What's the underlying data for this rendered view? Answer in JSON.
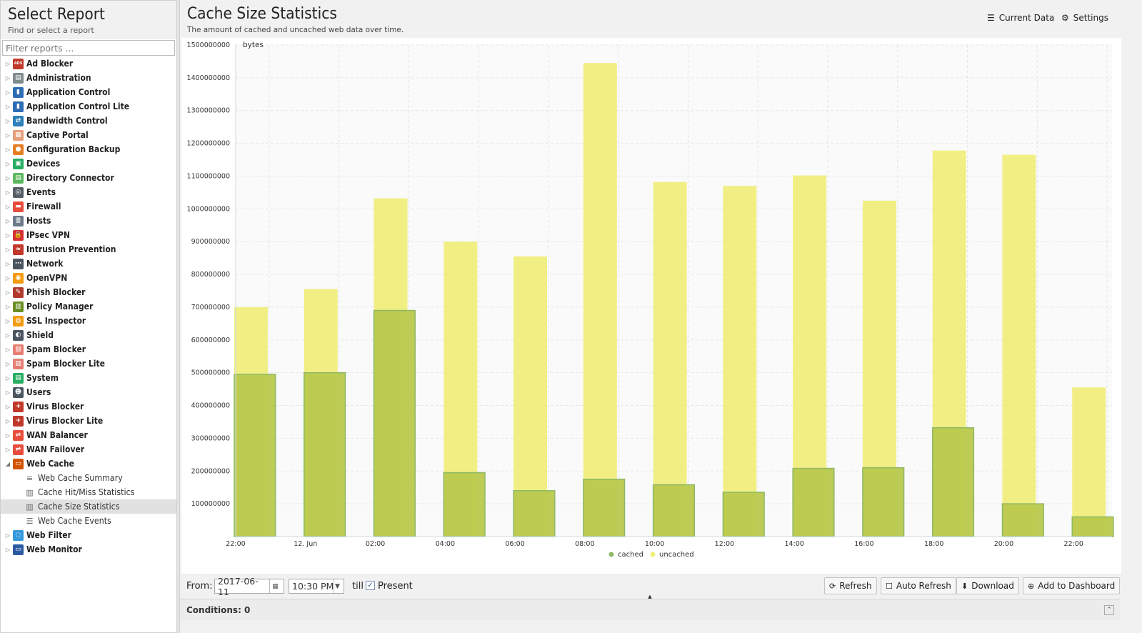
{
  "sidebar": {
    "title": "Select Report",
    "subtitle": "Find or select a report",
    "filter_placeholder": "Filter reports ...",
    "items": [
      {
        "label": "Ad Blocker",
        "icon": "ad-blocker-icon",
        "color": "#c0392b",
        "glyph": "ADS"
      },
      {
        "label": "Administration",
        "icon": "administration-icon",
        "color": "#7f8c8d",
        "glyph": "▤"
      },
      {
        "label": "Application Control",
        "icon": "application-control-icon",
        "color": "#2e6db4",
        "glyph": "▮"
      },
      {
        "label": "Application Control Lite",
        "icon": "application-control-lite-icon",
        "color": "#2e6db4",
        "glyph": "▮"
      },
      {
        "label": "Bandwidth Control",
        "icon": "bandwidth-control-icon",
        "color": "#2c7fb8",
        "glyph": "⇄"
      },
      {
        "label": "Captive Portal",
        "icon": "captive-portal-icon",
        "color": "#e6a07c",
        "glyph": "▦"
      },
      {
        "label": "Configuration Backup",
        "icon": "configuration-backup-icon",
        "color": "#e67e22",
        "glyph": "●"
      },
      {
        "label": "Devices",
        "icon": "devices-icon",
        "color": "#27ae60",
        "glyph": "▣"
      },
      {
        "label": "Directory Connector",
        "icon": "directory-connector-icon",
        "color": "#5cb85c",
        "glyph": "▤"
      },
      {
        "label": "Events",
        "icon": "events-icon",
        "color": "#555e66",
        "glyph": "◎"
      },
      {
        "label": "Firewall",
        "icon": "firewall-icon",
        "color": "#e74c3c",
        "glyph": "▬"
      },
      {
        "label": "Hosts",
        "icon": "hosts-icon",
        "color": "#6c7a89",
        "glyph": "≣"
      },
      {
        "label": "IPsec VPN",
        "icon": "ipsec-vpn-icon",
        "color": "#d63031",
        "glyph": "🔒"
      },
      {
        "label": "Intrusion Prevention",
        "icon": "intrusion-prevention-icon",
        "color": "#c0392b",
        "glyph": "≈"
      },
      {
        "label": "Network",
        "icon": "network-icon",
        "color": "#4a5560",
        "glyph": "⋯"
      },
      {
        "label": "OpenVPN",
        "icon": "openvpn-icon",
        "color": "#f39c12",
        "glyph": "◉"
      },
      {
        "label": "Phish Blocker",
        "icon": "phish-blocker-icon",
        "color": "#b03a2e",
        "glyph": "✎"
      },
      {
        "label": "Policy Manager",
        "icon": "policy-manager-icon",
        "color": "#6b8e23",
        "glyph": "▥"
      },
      {
        "label": "SSL Inspector",
        "icon": "ssl-inspector-icon",
        "color": "#f39c12",
        "glyph": "◍"
      },
      {
        "label": "Shield",
        "icon": "shield-icon",
        "color": "#4a5560",
        "glyph": "◐"
      },
      {
        "label": "Spam Blocker",
        "icon": "spam-blocker-icon",
        "color": "#e67e73",
        "glyph": "▨"
      },
      {
        "label": "Spam Blocker Lite",
        "icon": "spam-blocker-lite-icon",
        "color": "#e67e73",
        "glyph": "▨"
      },
      {
        "label": "System",
        "icon": "system-icon",
        "color": "#27ae60",
        "glyph": "▤"
      },
      {
        "label": "Users",
        "icon": "users-icon",
        "color": "#4a5560",
        "glyph": "☻"
      },
      {
        "label": "Virus Blocker",
        "icon": "virus-blocker-icon",
        "color": "#c0392b",
        "glyph": "+"
      },
      {
        "label": "Virus Blocker Lite",
        "icon": "virus-blocker-lite-icon",
        "color": "#c0392b",
        "glyph": "+"
      },
      {
        "label": "WAN Balancer",
        "icon": "wan-balancer-icon",
        "color": "#e74c3c",
        "glyph": "⇌"
      },
      {
        "label": "WAN Failover",
        "icon": "wan-failover-icon",
        "color": "#e74c3c",
        "glyph": "⇌"
      },
      {
        "label": "Web Cache",
        "icon": "web-cache-icon",
        "color": "#d35400",
        "glyph": "▭",
        "expanded": true
      },
      {
        "label": "Web Filter",
        "icon": "web-filter-icon",
        "color": "#3498db",
        "glyph": "◌"
      },
      {
        "label": "Web Monitor",
        "icon": "web-monitor-icon",
        "color": "#2c5aa0",
        "glyph": "▭"
      }
    ],
    "web_cache_children": [
      {
        "label": "Web Cache Summary",
        "icon": "text-report-icon",
        "glyph": "≡",
        "selected": false
      },
      {
        "label": "Cache Hit/Miss Statistics",
        "icon": "bar-chart-icon",
        "glyph": "▥",
        "selected": false
      },
      {
        "label": "Cache Size Statistics",
        "icon": "bar-chart-icon",
        "glyph": "▥",
        "selected": true
      },
      {
        "label": "Web Cache Events",
        "icon": "list-icon",
        "glyph": "☰",
        "selected": false
      }
    ]
  },
  "main": {
    "title": "Cache Size Statistics",
    "subtitle": "The amount of cached and uncached web data over time.",
    "current_data_label": "Current Data",
    "settings_label": "Settings"
  },
  "chart_data": {
    "type": "bar",
    "ylabel": "bytes",
    "ylim": [
      0,
      1500000000
    ],
    "yticks": [
      "100000000",
      "200000000",
      "300000000",
      "400000000",
      "500000000",
      "600000000",
      "700000000",
      "800000000",
      "900000000",
      "1000000000",
      "1100000000",
      "1200000000",
      "1300000000",
      "1400000000",
      "1500000000"
    ],
    "x_ticks": [
      "22:00",
      "12. Jun",
      "02:00",
      "04:00",
      "06:00",
      "08:00",
      "10:00",
      "12:00",
      "14:00",
      "16:00",
      "18:00",
      "20:00",
      "22:00"
    ],
    "grid": true,
    "legend_position": "bottom-center",
    "series": [
      {
        "name": "cached",
        "color": "#8fb866",
        "values": [
          495000000,
          500000000,
          690000000,
          195000000,
          140000000,
          175000000,
          158000000,
          135000000,
          208000000,
          210000000,
          332000000,
          100000000,
          60000000
        ]
      },
      {
        "name": "uncached",
        "color": "#f0ee78",
        "values": [
          700000000,
          755000000,
          1032000000,
          900000000,
          855000000,
          1445000000,
          1082000000,
          1070000000,
          1102000000,
          1025000000,
          1178000000,
          1165000000,
          455000000
        ]
      }
    ]
  },
  "toolbar": {
    "from_label": "From:",
    "date_value": "2017-06-11",
    "time_value": "10:30 PM",
    "till_label": "till",
    "present_label": "Present",
    "present_checked": true,
    "refresh_label": "Refresh",
    "auto_refresh_label": "Auto Refresh",
    "download_label": "Download",
    "add_dashboard_label": "Add to Dashboard"
  },
  "conditions": {
    "label": "Conditions: 0"
  }
}
